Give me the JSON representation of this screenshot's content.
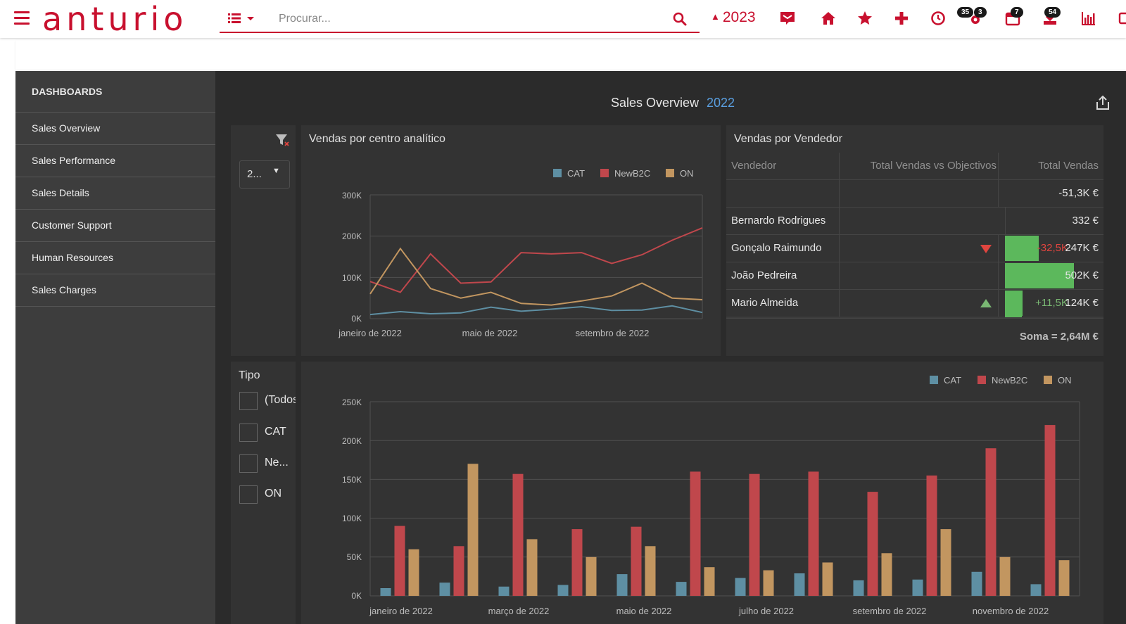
{
  "app": {
    "brand": "anturio",
    "search_placeholder": "Procurar...",
    "year": "2023",
    "badges": {
      "settings_a": "35",
      "settings_b": "3",
      "calendar": "7",
      "inbox": "54"
    },
    "accent": "#c8102e"
  },
  "sidebar": {
    "header": "DASHBOARDS",
    "items": [
      {
        "label": "Sales Overview"
      },
      {
        "label": "Sales Performance"
      },
      {
        "label": "Sales Details"
      },
      {
        "label": "Customer Support"
      },
      {
        "label": "Human Resources"
      },
      {
        "label": "Sales Charges"
      }
    ]
  },
  "dashboard": {
    "title": "Sales Overview",
    "year": "2022"
  },
  "filters": {
    "year_dropdown": "2...",
    "tipo_title": "Tipo",
    "tipo_options": [
      {
        "label": "(Todos"
      },
      {
        "label": "CAT"
      },
      {
        "label": "Ne..."
      },
      {
        "label": "ON"
      }
    ]
  },
  "line_panel": {
    "title": "Vendas por centro analítico"
  },
  "seller_panel": {
    "title": "Vendas por Vendedor",
    "columns": [
      "Vendedor",
      "Total Vendas vs Objectivos",
      "Total Vendas"
    ],
    "rows": [
      {
        "name": "",
        "diff": "",
        "trend": "",
        "total": "-51,3K €",
        "bar_fraction": 0
      },
      {
        "name": "Bernardo Rodrigues",
        "diff": "",
        "trend": "",
        "total": "332 €",
        "bar_fraction": 0
      },
      {
        "name": "Gonçalo Raimundo",
        "diff": "-32,5K",
        "trend": "down",
        "total": "247K €",
        "bar_fraction": 0.49
      },
      {
        "name": "João Pedreira",
        "diff": "",
        "trend": "",
        "total": "502K €",
        "bar_fraction": 1.0
      },
      {
        "name": "Mario Almeida",
        "diff": "+11,5K",
        "trend": "up",
        "total": "124K €",
        "bar_fraction": 0.25
      }
    ],
    "sum": "Soma = 2,64M €"
  },
  "colors": {
    "CAT": "#5e8fa3",
    "NewB2C": "#c0474c",
    "ON": "#c29660",
    "up": "#7ab873",
    "down": "#e0453f",
    "bar": "#5cb85c"
  },
  "chart_data": [
    {
      "type": "line",
      "title": "Vendas por centro analítico",
      "x": [
        "jan 2022",
        "fev 2022",
        "mar 2022",
        "abr 2022",
        "mai 2022",
        "jun 2022",
        "jul 2022",
        "ago 2022",
        "set 2022",
        "out 2022",
        "nov 2022",
        "dez 2022"
      ],
      "x_tick_labels": [
        "janeiro de 2022",
        "maio de 2022",
        "setembro de 2022"
      ],
      "y_tick_labels": [
        "300K",
        "200K",
        "100K",
        "0K"
      ],
      "ylim": [
        0,
        300000
      ],
      "legend": [
        "CAT",
        "NewB2C",
        "ON"
      ],
      "series": [
        {
          "name": "CAT",
          "values": [
            10000,
            17000,
            12000,
            14000,
            28000,
            18000,
            23000,
            29000,
            20000,
            21000,
            31000,
            15000
          ]
        },
        {
          "name": "NewB2C",
          "values": [
            90000,
            64000,
            157000,
            86000,
            89000,
            160000,
            157000,
            160000,
            134000,
            155000,
            190000,
            220000
          ]
        },
        {
          "name": "ON",
          "values": [
            60000,
            170000,
            73000,
            50000,
            64000,
            37000,
            33000,
            43000,
            55000,
            86000,
            50000,
            46000
          ]
        }
      ]
    },
    {
      "type": "bar",
      "x": [
        "jan 2022",
        "fev 2022",
        "mar 2022",
        "abr 2022",
        "mai 2022",
        "jun 2022",
        "jul 2022",
        "ago 2022",
        "set 2022",
        "out 2022",
        "nov 2022",
        "dez 2022"
      ],
      "x_tick_labels": [
        "janeiro de 2022",
        "março de 2022",
        "maio de 2022",
        "julho de 2022",
        "setembro de 2022",
        "novembro de 2022"
      ],
      "y_tick_labels": [
        "250K",
        "200K",
        "150K",
        "100K",
        "50K",
        "0K"
      ],
      "ylim": [
        0,
        250000
      ],
      "legend": [
        "CAT",
        "NewB2C",
        "ON"
      ],
      "series": [
        {
          "name": "CAT",
          "values": [
            10000,
            17000,
            12000,
            14000,
            28000,
            18000,
            23000,
            29000,
            20000,
            21000,
            31000,
            15000
          ]
        },
        {
          "name": "NewB2C",
          "values": [
            90000,
            64000,
            157000,
            86000,
            89000,
            160000,
            157000,
            160000,
            134000,
            155000,
            190000,
            220000
          ]
        },
        {
          "name": "ON",
          "values": [
            60000,
            170000,
            73000,
            50000,
            64000,
            37000,
            33000,
            43000,
            55000,
            86000,
            50000,
            46000
          ]
        }
      ]
    }
  ]
}
